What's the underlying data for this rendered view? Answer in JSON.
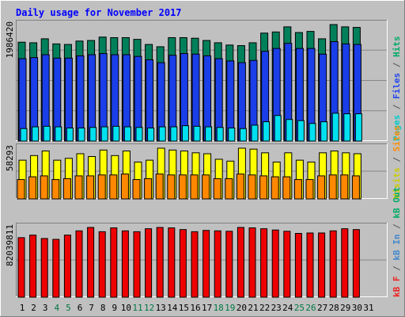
{
  "chart_data": {
    "type": "bar",
    "title": "Daily usage for November 2017",
    "x": [
      "1",
      "2",
      "3",
      "4",
      "5",
      "6",
      "7",
      "8",
      "9",
      "10",
      "11",
      "12",
      "13",
      "14",
      "15",
      "16",
      "17",
      "18",
      "19",
      "20",
      "21",
      "22",
      "23",
      "24",
      "25",
      "26",
      "27",
      "28",
      "29",
      "30",
      "31"
    ],
    "weekend_days": [
      4,
      5,
      11,
      12,
      18,
      19,
      25,
      26
    ],
    "panels": [
      {
        "id": "top",
        "max_label": "1986420",
        "right_label_parts": [
          {
            "text": "Pages",
            "color": "#00cccc"
          },
          {
            "text": " / ",
            "color": "#555555"
          },
          {
            "text": "Files",
            "color": "#2244ee"
          },
          {
            "text": " / ",
            "color": "#555555"
          },
          {
            "text": "Hits",
            "color": "#00aa66"
          }
        ],
        "series": [
          {
            "name": "Hits",
            "color": "#00805a",
            "values": [
              1740000,
              1730000,
              1800000,
              1710000,
              1700000,
              1760000,
              1770000,
              1830000,
              1820000,
              1820000,
              1790000,
              1700000,
              1660000,
              1820000,
              1820000,
              1810000,
              1770000,
              1730000,
              1690000,
              1680000,
              1730000,
              1900000,
              1920000,
              2010000,
              1910000,
              1930000,
              1800000,
              2050000,
              2010000,
              2000000,
              0
            ]
          },
          {
            "name": "Files",
            "color": "#1a3ee8",
            "values": [
              1450000,
              1470000,
              1520000,
              1460000,
              1460000,
              1500000,
              1520000,
              1540000,
              1520000,
              1520000,
              1490000,
              1430000,
              1380000,
              1510000,
              1540000,
              1530000,
              1500000,
              1450000,
              1410000,
              1380000,
              1420000,
              1580000,
              1630000,
              1720000,
              1630000,
              1630000,
              1530000,
              1750000,
              1710000,
              1700000,
              0
            ]
          },
          {
            "name": "Pages",
            "color": "#00e0f0",
            "values": [
              220000,
              250000,
              260000,
              250000,
              230000,
              230000,
              240000,
              250000,
              260000,
              250000,
              240000,
              230000,
              250000,
              250000,
              270000,
              260000,
              250000,
              240000,
              230000,
              220000,
              280000,
              340000,
              450000,
              380000,
              360000,
              310000,
              340000,
              490000,
              480000,
              480000,
              0
            ]
          }
        ]
      },
      {
        "id": "middle",
        "max_label": "58293",
        "right_label_parts": [
          {
            "text": "Visits",
            "color": "#cccc00"
          },
          {
            "text": " / ",
            "color": "#555555"
          },
          {
            "text": "Sites",
            "color": "#ff8c00"
          }
        ],
        "series": [
          {
            "name": "Visits",
            "color": "#ffff00",
            "values": [
              42000,
              47000,
              52000,
              42000,
              44000,
              49000,
              46000,
              53000,
              47000,
              52000,
              40000,
              42000,
              55000,
              53000,
              52000,
              50000,
              49000,
              43000,
              41000,
              55000,
              54000,
              50000,
              40000,
              50000,
              42000,
              40000,
              50000,
              52000,
              50000,
              49000,
              0
            ]
          },
          {
            "name": "Sites",
            "color": "#ff8800",
            "values": [
              21000,
              24000,
              25000,
              21000,
              22000,
              25000,
              25000,
              26000,
              26000,
              27000,
              21000,
              22000,
              27000,
              26000,
              26000,
              26000,
              26000,
              22000,
              22000,
              27000,
              26000,
              25000,
              24000,
              24000,
              21000,
              21000,
              25000,
              26000,
              26000,
              25000,
              0
            ]
          }
        ]
      },
      {
        "id": "bottom",
        "max_label": "82039811",
        "right_label_parts": [
          {
            "text": "kB F",
            "color": "#ee2222"
          },
          {
            "text": " / ",
            "color": "#555555"
          },
          {
            "text": "kB In",
            "color": "#4488cc"
          },
          {
            "text": " / ",
            "color": "#555555"
          },
          {
            "text": "kB Out",
            "color": "#00aa66"
          }
        ],
        "series": [
          {
            "name": "kB F",
            "color": "#ee0000",
            "values": [
              70000000,
              73000000,
              69000000,
              68000000,
              73000000,
              78000000,
              82000000,
              77000000,
              81500000,
              78000000,
              77000000,
              80500000,
              82000000,
              81500000,
              79500000,
              77000000,
              78500000,
              78000000,
              77500000,
              82000000,
              81500000,
              80500000,
              79000000,
              77500000,
              75000000,
              75500000,
              75500000,
              78000000,
              80500000,
              79500000,
              0
            ]
          }
        ]
      }
    ]
  }
}
